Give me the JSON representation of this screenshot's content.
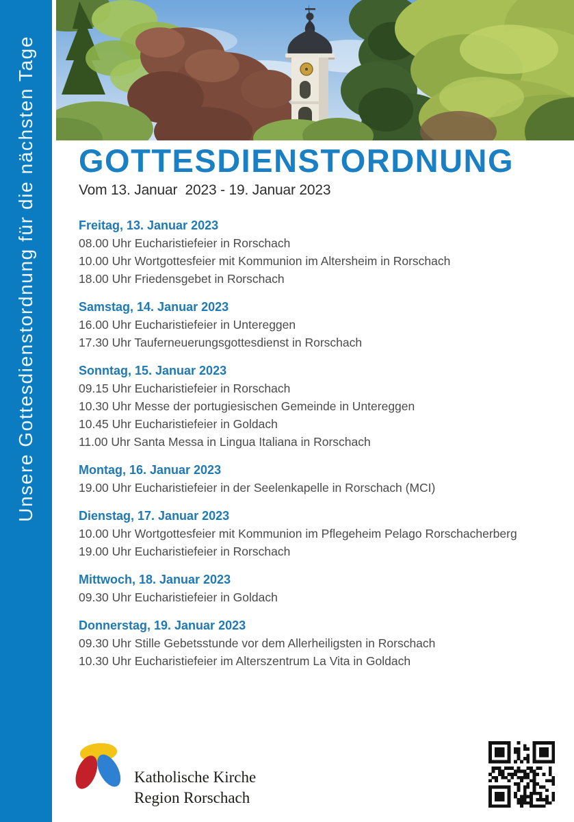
{
  "sidebar": {
    "vertical_text": "Unsere Gottesdienstordnung für die nächsten Tage"
  },
  "header": {
    "title": "GOTTESDIENSTORDNUNG",
    "subtitle": "Vom 13. Januar  2023 - 19. Januar 2023"
  },
  "schedule": {
    "days": [
      {
        "label": "Freitag, 13. Januar 2023",
        "entries": [
          "08.00 Uhr Eucharistiefeier in Rorschach",
          "10.00 Uhr Wortgottesfeier mit Kommunion im Altersheim in Rorschach",
          "18.00 Uhr Friedensgebet in Rorschach"
        ]
      },
      {
        "label": "Samstag, 14. Januar 2023",
        "entries": [
          "16.00 Uhr Eucharistiefeier in Untereggen",
          "17.30 Uhr Tauferneuerungsgottesdienst in Rorschach"
        ]
      },
      {
        "label": "Sonntag, 15. Januar 2023",
        "entries": [
          "09.15 Uhr Eucharistiefeier in Rorschach",
          "10.30 Uhr Messe der portugiesischen Gemeinde in Untereggen",
          "10.45 Uhr Eucharistiefeier in Goldach",
          "11.00 Uhr Santa Messa in Lingua Italiana in Rorschach"
        ]
      },
      {
        "label": "Montag, 16. Januar 2023",
        "entries": [
          "19.00 Uhr Eucharistiefeier in der Seelenkapelle in Rorschach (MCI)"
        ]
      },
      {
        "label": "Dienstag, 17. Januar 2023",
        "entries": [
          "10.00 Uhr Wortgottesfeier mit Kommunion im Pflegeheim Pelago Rorschacherberg",
          "19.00 Uhr Eucharistiefeier in Rorschach"
        ]
      },
      {
        "label": "Mittwoch, 18. Januar 2023",
        "entries": [
          "09.30 Uhr Eucharistiefeier in Goldach"
        ]
      },
      {
        "label": "Donnerstag, 19. Januar 2023",
        "entries": [
          "09.30 Uhr Stille Gebetsstunde vor dem Allerheiligsten in Rorschach",
          "10.30 Uhr Eucharistiefeier im Alterszentrum La Vita in Goldach"
        ]
      }
    ]
  },
  "footer": {
    "org_name_line1": "Katholische Kirche",
    "org_name_line2": "Region Rorschach"
  },
  "colors": {
    "sidebar_blue": "#0b7cc1",
    "title_blue": "#1b7fc3",
    "day_header_blue": "#1e79b4",
    "body_text": "#4a4a4a",
    "logo_yellow": "#f3c318",
    "logo_red": "#c2212a",
    "logo_blue": "#2e80d2"
  }
}
